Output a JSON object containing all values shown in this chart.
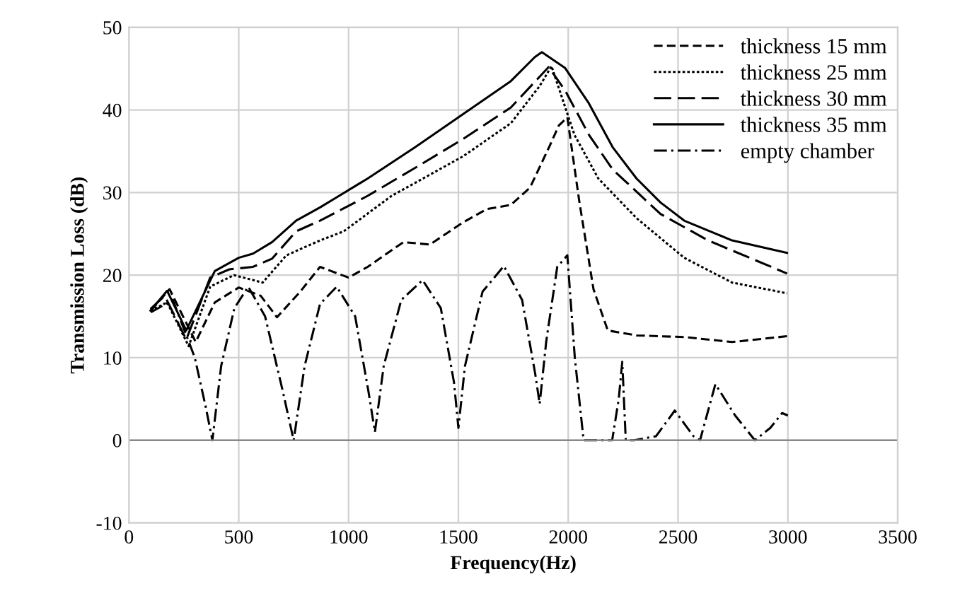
{
  "chart_data": {
    "type": "line",
    "xlabel": "Frequency(Hz)",
    "ylabel": "Transmission Loss (dB)",
    "xlim": [
      0,
      3500
    ],
    "xticks": [
      0,
      500,
      1000,
      1500,
      2000,
      2500,
      3000,
      3500
    ],
    "ylim": [
      -10,
      50
    ],
    "yticks": [
      -10,
      0,
      10,
      20,
      30,
      40,
      50
    ],
    "grid": true,
    "legend": "top right",
    "marker": "none",
    "series": [
      {
        "name": "thickness 15 mm",
        "color": "#000000",
        "line_style": "dashed",
        "x": [
          100,
          185,
          304,
          391,
          500,
          600,
          674,
          780,
          870,
          1000,
          1087,
          1250,
          1370,
          1522,
          1630,
          1739,
          1826,
          1913,
          1957,
          1996,
          2050,
          2115,
          2180,
          2311,
          2528,
          2746,
          2996
        ],
        "values": [
          15.7,
          18.3,
          11.9,
          16.7,
          18.5,
          17.5,
          14.9,
          18,
          21,
          19.7,
          21,
          24,
          23.7,
          26.4,
          28,
          28.5,
          30.6,
          35.5,
          38.1,
          39.1,
          29,
          18.3,
          13.3,
          12.7,
          12.5,
          11.9,
          12.6
        ]
      },
      {
        "name": "thickness 25 mm",
        "color": "#000000",
        "line_style": "dotted",
        "x": [
          98,
          174,
          272,
          370,
          478,
          609,
          717,
          870,
          978,
          1196,
          1522,
          1739,
          1870,
          1924,
          1974,
          2028,
          2137,
          2311,
          2528,
          2746,
          2996
        ],
        "values": [
          15.7,
          16.7,
          11.4,
          18.6,
          20,
          19.1,
          22.4,
          24.2,
          25.3,
          29.6,
          34.4,
          38.4,
          42.9,
          45.3,
          41.3,
          37,
          31.7,
          26.9,
          22.1,
          19.1,
          17.8
        ]
      },
      {
        "name": "thickness 30 mm",
        "color": "#000000",
        "line_style": "longdash",
        "x": [
          98,
          163,
          261,
          370,
          457,
          565,
          652,
          761,
          870,
          1087,
          1304,
          1522,
          1739,
          1911,
          1985,
          2094,
          2202,
          2420,
          2637,
          2996
        ],
        "values": [
          15.9,
          17.5,
          12.2,
          19.7,
          20.7,
          21,
          22,
          25.3,
          26.6,
          29.6,
          33,
          36.5,
          40.3,
          45.2,
          42.4,
          37,
          32.8,
          27.4,
          24.2,
          20.2
        ]
      },
      {
        "name": "thickness 35 mm",
        "color": "#000000",
        "line_style": "solid",
        "x": [
          98,
          174,
          261,
          391,
          500,
          565,
          652,
          761,
          870,
          957,
          1087,
          1304,
          1522,
          1739,
          1848,
          1880,
          1985,
          2094,
          2202,
          2311,
          2420,
          2528,
          2746,
          2996
        ],
        "values": [
          15.7,
          18.1,
          13.3,
          20.5,
          22.1,
          22.6,
          24,
          26.6,
          28.2,
          29.6,
          31.7,
          35.5,
          39.5,
          43.5,
          46.4,
          47,
          45.1,
          40.8,
          35.5,
          31.7,
          28.8,
          26.6,
          24.2,
          22.7
        ]
      },
      {
        "name": "empty chamber",
        "color": "#000000",
        "line_style": "dashdot",
        "x": [
          100,
          200,
          300,
          350,
          380,
          420,
          480,
          543,
          620,
          700,
          750,
          800,
          870,
          946,
          1030,
          1090,
          1120,
          1160,
          1240,
          1337,
          1420,
          1480,
          1500,
          1530,
          1610,
          1707,
          1790,
          1850,
          1870,
          1900,
          1950,
          1996,
          2030,
          2070,
          2120,
          2200,
          2230,
          2246,
          2262,
          2300,
          2400,
          2485,
          2570,
          2600,
          2670,
          2760,
          2850,
          2920,
          2974,
          3000
        ],
        "values": [
          15.5,
          17,
          10,
          4,
          0,
          9,
          16,
          18.6,
          15,
          6,
          0,
          9,
          16.5,
          18.6,
          15,
          6,
          1,
          9,
          17,
          19.4,
          16,
          7,
          1.5,
          9,
          18,
          21.1,
          17,
          8,
          4.4,
          12,
          21,
          22.4,
          10,
          0,
          0,
          0,
          5,
          9.5,
          0,
          0,
          0.5,
          3.6,
          0.5,
          0,
          6.8,
          3,
          0,
          1.5,
          3.3,
          3
        ]
      }
    ]
  }
}
